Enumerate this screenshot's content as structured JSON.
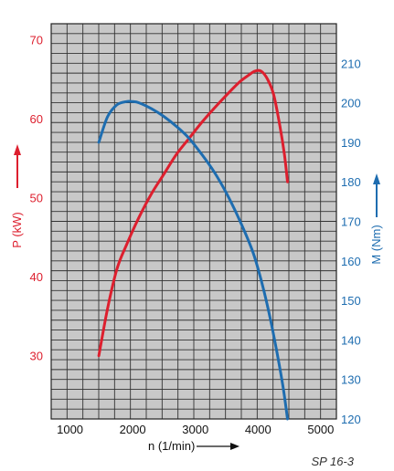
{
  "chart_data": {
    "type": "line",
    "x_axis": {
      "label": "n  (1/min)",
      "range": [
        700,
        5250
      ],
      "ticks": [
        1000,
        2000,
        3000,
        4000,
        5000
      ]
    },
    "y_left": {
      "label": "P (kW)",
      "range": [
        22,
        72
      ],
      "ticks": [
        30,
        40,
        50,
        60,
        70
      ]
    },
    "y_right": {
      "label": "M (Nm)",
      "range": [
        120,
        220
      ],
      "ticks": [
        120,
        130,
        140,
        150,
        160,
        170,
        180,
        190,
        200,
        210
      ]
    },
    "grid": true,
    "series": [
      {
        "axis": "left",
        "color": "#dd1f2e",
        "x": [
          1460,
          1600,
          1750,
          1900,
          2100,
          2300,
          2500,
          2700,
          2900,
          3100,
          3300,
          3500,
          3700,
          3850,
          3950,
          4050,
          4150,
          4250,
          4350,
          4420,
          4470
        ],
        "y": [
          30,
          36,
          41,
          44,
          47.5,
          50.5,
          53,
          55.5,
          57.5,
          59.5,
          61.3,
          63,
          64.6,
          65.5,
          66,
          66,
          65,
          63,
          59,
          55.5,
          52
        ]
      },
      {
        "axis": "right",
        "color": "#1e6db0",
        "x": [
          1460,
          1600,
          1750,
          1900,
          2000,
          2100,
          2300,
          2500,
          2700,
          2900,
          3100,
          3300,
          3500,
          3700,
          3900,
          4000,
          4100,
          4200,
          4300,
          4400,
          4470
        ],
        "y": [
          190,
          196.5,
          199.5,
          200.3,
          200.3,
          200,
          198.5,
          196.5,
          194,
          191,
          187,
          182.5,
          177,
          170.5,
          163,
          158,
          152,
          145,
          137,
          128,
          120
        ]
      }
    ],
    "figure_ref": "SP 16-3",
    "colors": {
      "left_axis": "#dd1f2e",
      "right_axis": "#1e6db0",
      "plot_background": "#c8c8c8",
      "grid": "#333333"
    }
  }
}
